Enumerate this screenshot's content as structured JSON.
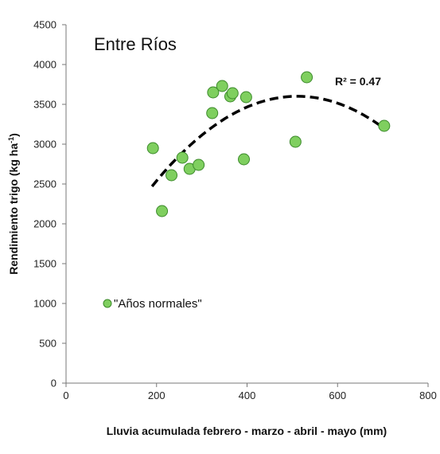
{
  "chart_data": {
    "type": "scatter",
    "title": "Entre Ríos",
    "xlabel": "Lluvia acumulada febrero - marzo - abril - mayo  (mm)",
    "ylabel": "Rendimiento trigo (kg ha",
    "ylabel_sup": "-1",
    "ylabel_end": ")",
    "xlim": [
      0,
      800
    ],
    "ylim": [
      0,
      4500
    ],
    "xticks": [
      "0",
      "200",
      "400",
      "600",
      "800"
    ],
    "yticks": [
      "0",
      "500",
      "1000",
      "1500",
      "2000",
      "2500",
      "3000",
      "3500",
      "4000",
      "4500"
    ],
    "grid": false,
    "legend": {
      "position": "left-middle",
      "label": "\"Años normales\""
    },
    "marker_color": "#7fcf5f",
    "marker_edge": "#3c8a2b",
    "trendline_color": "#000000",
    "series": [
      {
        "name": "\"Años normales\"",
        "points": [
          [
            192,
            2950
          ],
          [
            212,
            2160
          ],
          [
            233,
            2610
          ],
          [
            257,
            2830
          ],
          [
            273,
            2690
          ],
          [
            293,
            2740
          ],
          [
            323,
            3390
          ],
          [
            325,
            3650
          ],
          [
            345,
            3730
          ],
          [
            363,
            3600
          ],
          [
            368,
            3640
          ],
          [
            393,
            2810
          ],
          [
            398,
            3590
          ],
          [
            507,
            3030
          ],
          [
            532,
            3840
          ],
          [
            703,
            3230
          ]
        ]
      }
    ],
    "trendline": {
      "type": "polynomial-2",
      "x_range": [
        190,
        700
      ],
      "points": [
        [
          190,
          2470
        ],
        [
          300,
          3170
        ],
        [
          400,
          3490
        ],
        [
          500,
          3600
        ],
        [
          600,
          3510
        ],
        [
          700,
          3210
        ]
      ],
      "label": "R² = 0.47"
    }
  }
}
